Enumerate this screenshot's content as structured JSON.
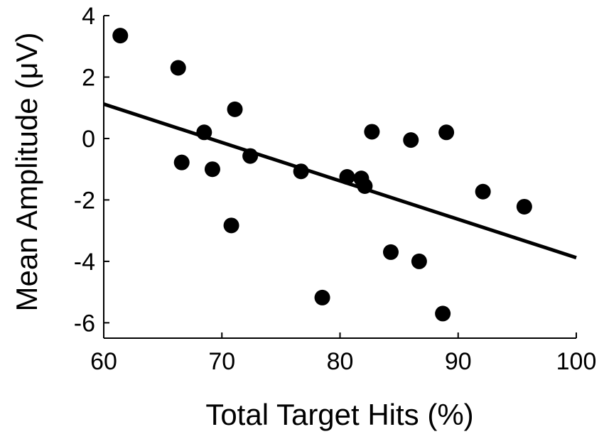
{
  "chart_data": {
    "type": "scatter",
    "title": "",
    "xlabel": "Total Target Hits (%)",
    "ylabel": "Mean Amplitude (μV)",
    "xlim": [
      60,
      100
    ],
    "ylim": [
      -6.5,
      4
    ],
    "xticks": [
      60,
      70,
      80,
      90,
      100
    ],
    "yticks": [
      4,
      2,
      0,
      -2,
      -4,
      -6
    ],
    "xtick_labels": [
      "60",
      "70",
      "80",
      "90",
      "100"
    ],
    "ytick_labels": [
      "4",
      "2",
      "0",
      "-2",
      "-4",
      "-6"
    ],
    "grid": false,
    "marker_color": "#000000",
    "points": [
      {
        "x": 61.4,
        "y": 3.35
      },
      {
        "x": 66.3,
        "y": 2.3
      },
      {
        "x": 66.6,
        "y": -0.78
      },
      {
        "x": 68.5,
        "y": 0.2
      },
      {
        "x": 69.2,
        "y": -1.0
      },
      {
        "x": 70.8,
        "y": -2.83
      },
      {
        "x": 71.1,
        "y": 0.95
      },
      {
        "x": 72.4,
        "y": -0.57
      },
      {
        "x": 76.7,
        "y": -1.07
      },
      {
        "x": 78.5,
        "y": -5.18
      },
      {
        "x": 80.6,
        "y": -1.25
      },
      {
        "x": 81.8,
        "y": -1.3
      },
      {
        "x": 82.1,
        "y": -1.55
      },
      {
        "x": 82.7,
        "y": 0.22
      },
      {
        "x": 84.3,
        "y": -3.7
      },
      {
        "x": 86.0,
        "y": -0.05
      },
      {
        "x": 86.7,
        "y": -4.0
      },
      {
        "x": 88.7,
        "y": -5.7
      },
      {
        "x": 89.0,
        "y": 0.2
      },
      {
        "x": 92.1,
        "y": -1.73
      },
      {
        "x": 95.6,
        "y": -2.22
      }
    ],
    "fit_line": {
      "x": [
        60,
        100
      ],
      "y": [
        1.12,
        -3.88
      ]
    }
  }
}
